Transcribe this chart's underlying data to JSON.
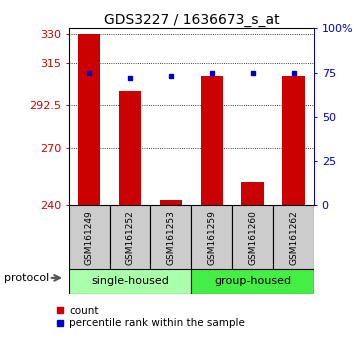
{
  "title": "GDS3227 / 1636673_s_at",
  "samples": [
    "GSM161249",
    "GSM161252",
    "GSM161253",
    "GSM161259",
    "GSM161260",
    "GSM161262"
  ],
  "bar_values": [
    330,
    300,
    243,
    308,
    252,
    308
  ],
  "percentile_values": [
    75,
    72,
    73,
    75,
    75,
    75
  ],
  "bar_bottom": 240,
  "ylim_left": [
    240,
    333
  ],
  "ylim_right": [
    0,
    100
  ],
  "yticks_left": [
    240,
    270,
    292.5,
    315,
    330
  ],
  "ytick_labels_left": [
    "240",
    "270",
    "292.5",
    "315",
    "330"
  ],
  "yticks_right": [
    0,
    25,
    50,
    75,
    100
  ],
  "ytick_labels_right": [
    "0",
    "25",
    "50",
    "75",
    "100%"
  ],
  "bar_color": "#cc0000",
  "dot_color": "#0000cc",
  "protocols": [
    {
      "label": "single-housed",
      "count": 3,
      "color": "#aaffaa"
    },
    {
      "label": "group-housed",
      "count": 3,
      "color": "#44ee44"
    }
  ],
  "protocol_label": "protocol",
  "legend_items": [
    {
      "color": "#cc0000",
      "label": "count"
    },
    {
      "color": "#0000cc",
      "label": "percentile rank within the sample"
    }
  ],
  "sample_box_color": "#cccccc",
  "title_fontsize": 10,
  "tick_fontsize": 8,
  "legend_fontsize": 7.5
}
